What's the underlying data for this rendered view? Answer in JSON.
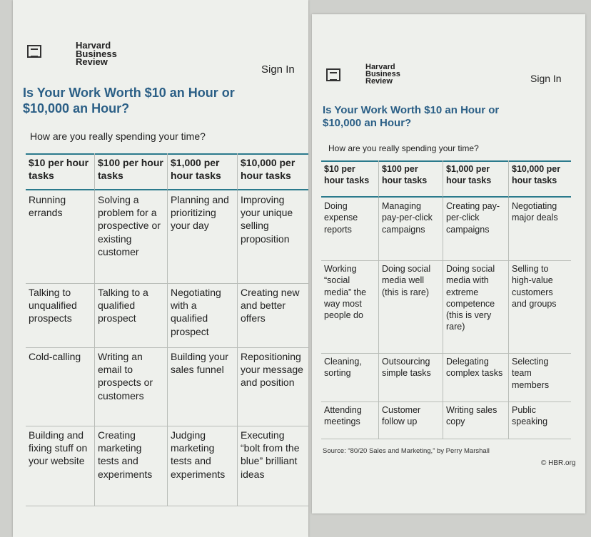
{
  "left_page": {
    "logo": "Harvard Business Review",
    "sign_in": "Sign In",
    "title": "Is Your Work Worth $10 an Hour or $10,000 an Hour?",
    "subtitle": "How are you really spending your time?",
    "table": {
      "header": [
        "$10 per hour tasks",
        "$100 per hour tasks",
        "$1,000 per hour tasks",
        "$10,000 per hour tasks"
      ],
      "rows": [
        [
          "Running errands",
          "Solving a problem for a prospective or existing customer",
          "Planning and prioritizing your day",
          "Improving your unique selling proposition"
        ],
        [
          "Talking to unqualified prospects",
          "Talking to a qualified prospect",
          "Negotiating with a qualified prospect",
          "Creating new and better offers"
        ],
        [
          "Cold-calling",
          "Writing an email to prospects or customers",
          "Building your sales funnel",
          "Repositioning your message and position"
        ],
        [
          "Building and fixing stuff on your website",
          "Creating marketing tests and experiments",
          "Judging marketing tests and experiments",
          "Executing “bolt from the blue” brilliant ideas"
        ]
      ]
    }
  },
  "right_page": {
    "logo": "Harvard Business Review",
    "sign_in": "Sign In",
    "title": "Is Your Work Worth $10 an Hour or $10,000 an Hour?",
    "subtitle": "How are you really spending your time?",
    "table": {
      "header": [
        "$10 per hour tasks",
        "$100 per hour tasks",
        "$1,000 per hour tasks",
        "$10,000 per hour tasks"
      ],
      "rows": [
        [
          "Doing expense reports",
          "Managing pay-per-click campaigns",
          "Creating pay-per-click campaigns",
          "Negotiating major deals"
        ],
        [
          "Working “social media” the way most people do",
          "Doing social media well (this is rare)",
          "Doing social media with extreme competence (this is very rare)",
          "Selling to high-value customers and groups"
        ],
        [
          "Cleaning, sorting",
          "Outsourcing simple tasks",
          "Delegating complex tasks",
          "Selecting team members"
        ],
        [
          "Attending meetings",
          "Customer follow up",
          "Writing sales copy",
          "Public speaking"
        ]
      ]
    },
    "source": "Source: “80/20 Sales and Marketing,” by Perry Marshall",
    "copyright": "© HBR.org"
  }
}
